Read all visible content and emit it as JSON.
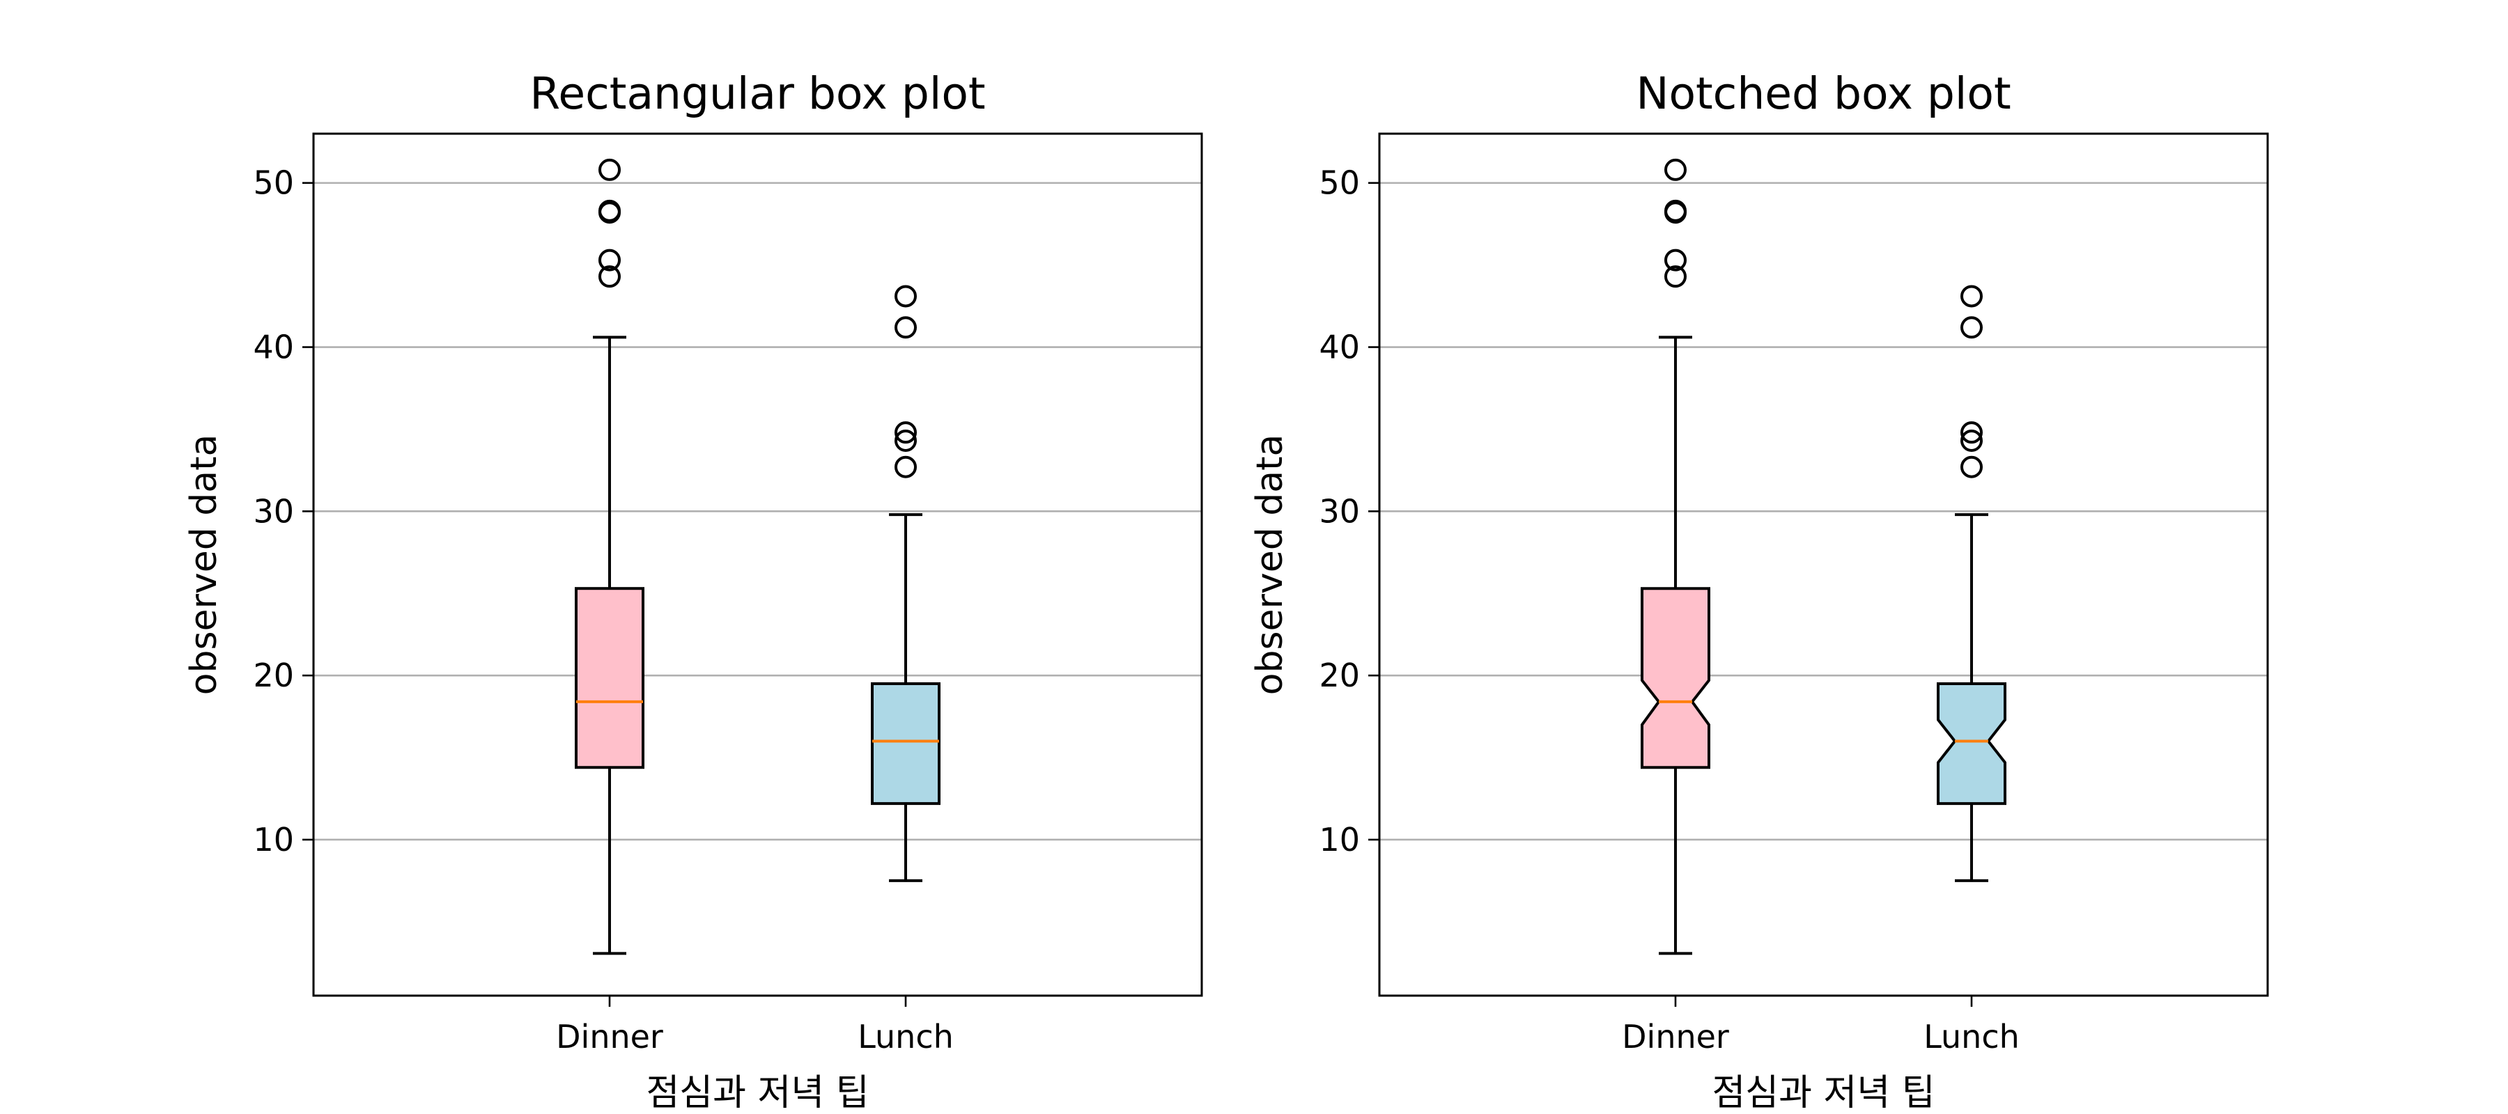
{
  "chart_data": [
    {
      "type": "box",
      "title": "Rectangular box plot",
      "notched": false,
      "xlabel": "점심과 저녁 팁",
      "ylabel": "observed data",
      "categories": [
        "Dinner",
        "Lunch"
      ],
      "ylim": [
        0.5,
        53
      ],
      "yticks": [
        10,
        20,
        30,
        40,
        50
      ],
      "grid": "y",
      "box_colors": [
        "#ffc0cb",
        "#add8e6"
      ],
      "median_color": "#ff7f0e",
      "series": [
        {
          "category": "Dinner",
          "whisker_low": 3.07,
          "q1": 14.4,
          "median": 18.4,
          "q3": 25.3,
          "whisker_high": 40.6,
          "notch_low": 17.0,
          "notch_high": 19.7,
          "outliers": [
            44.3,
            45.3,
            48.2,
            48.3,
            50.8
          ]
        },
        {
          "category": "Lunch",
          "whisker_low": 7.5,
          "q1": 12.2,
          "median": 16.0,
          "q3": 19.5,
          "whisker_high": 29.8,
          "notch_low": 14.7,
          "notch_high": 17.3,
          "outliers": [
            32.7,
            34.3,
            34.8,
            41.2,
            43.1
          ]
        }
      ]
    },
    {
      "type": "box",
      "title": "Notched box plot",
      "notched": true,
      "xlabel": "점심과 저녁 팁",
      "ylabel": "observed data",
      "categories": [
        "Dinner",
        "Lunch"
      ],
      "ylim": [
        0.5,
        53
      ],
      "yticks": [
        10,
        20,
        30,
        40,
        50
      ],
      "grid": "y",
      "box_colors": [
        "#ffc0cb",
        "#add8e6"
      ],
      "median_color": "#ff7f0e",
      "series": [
        {
          "category": "Dinner",
          "whisker_low": 3.07,
          "q1": 14.4,
          "median": 18.4,
          "q3": 25.3,
          "whisker_high": 40.6,
          "notch_low": 17.0,
          "notch_high": 19.7,
          "outliers": [
            44.3,
            45.3,
            48.2,
            48.3,
            50.8
          ]
        },
        {
          "category": "Lunch",
          "whisker_low": 7.5,
          "q1": 12.2,
          "median": 16.0,
          "q3": 19.5,
          "whisker_high": 29.8,
          "notch_low": 14.7,
          "notch_high": 17.3,
          "outliers": [
            32.7,
            34.3,
            34.8,
            41.2,
            43.1
          ]
        }
      ]
    }
  ]
}
